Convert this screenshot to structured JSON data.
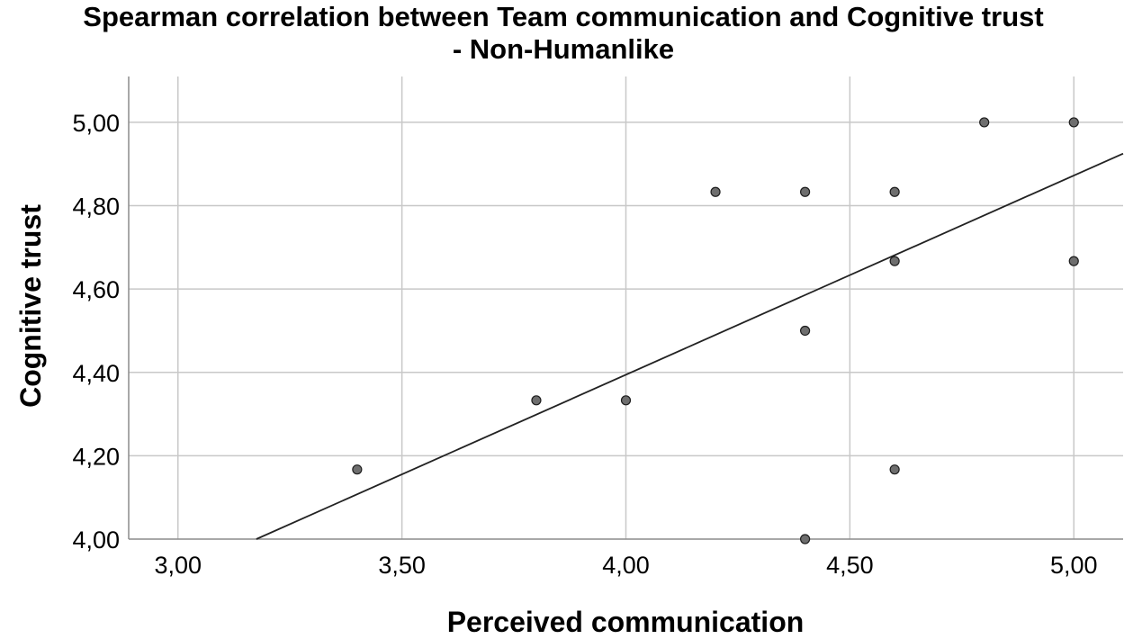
{
  "chart_data": {
    "type": "scatter",
    "title_line1": "Spearman correlation between Team communication and Cognitive trust",
    "title_line2": "- Non-Humanlike",
    "xlabel": "Perceived communication",
    "ylabel": "Cognitive trust",
    "x_ticks": [
      3.0,
      3.5,
      4.0,
      4.5,
      5.0
    ],
    "x_tick_labels": [
      "3,00",
      "3,50",
      "4,00",
      "4,50",
      "5,00"
    ],
    "y_ticks": [
      4.0,
      4.2,
      4.4,
      4.6,
      4.8,
      5.0
    ],
    "y_tick_labels": [
      "4,00",
      "4,20",
      "4,40",
      "4,60",
      "4,80",
      "5,00"
    ],
    "xlim": [
      2.89,
      5.11
    ],
    "ylim": [
      4.0,
      5.11
    ],
    "grid": true,
    "points": [
      {
        "x": 3.4,
        "y": 4.167
      },
      {
        "x": 3.8,
        "y": 4.333
      },
      {
        "x": 4.0,
        "y": 4.333
      },
      {
        "x": 4.2,
        "y": 4.833
      },
      {
        "x": 4.4,
        "y": 4.833
      },
      {
        "x": 4.4,
        "y": 4.5
      },
      {
        "x": 4.4,
        "y": 4.0
      },
      {
        "x": 4.6,
        "y": 4.833
      },
      {
        "x": 4.6,
        "y": 4.667
      },
      {
        "x": 4.6,
        "y": 4.167
      },
      {
        "x": 4.8,
        "y": 5.0
      },
      {
        "x": 5.0,
        "y": 5.0
      },
      {
        "x": 5.0,
        "y": 4.667
      }
    ],
    "fit_line": {
      "x1": 3.175,
      "y1": 4.0,
      "x2": 5.11,
      "y2": 4.925
    }
  }
}
